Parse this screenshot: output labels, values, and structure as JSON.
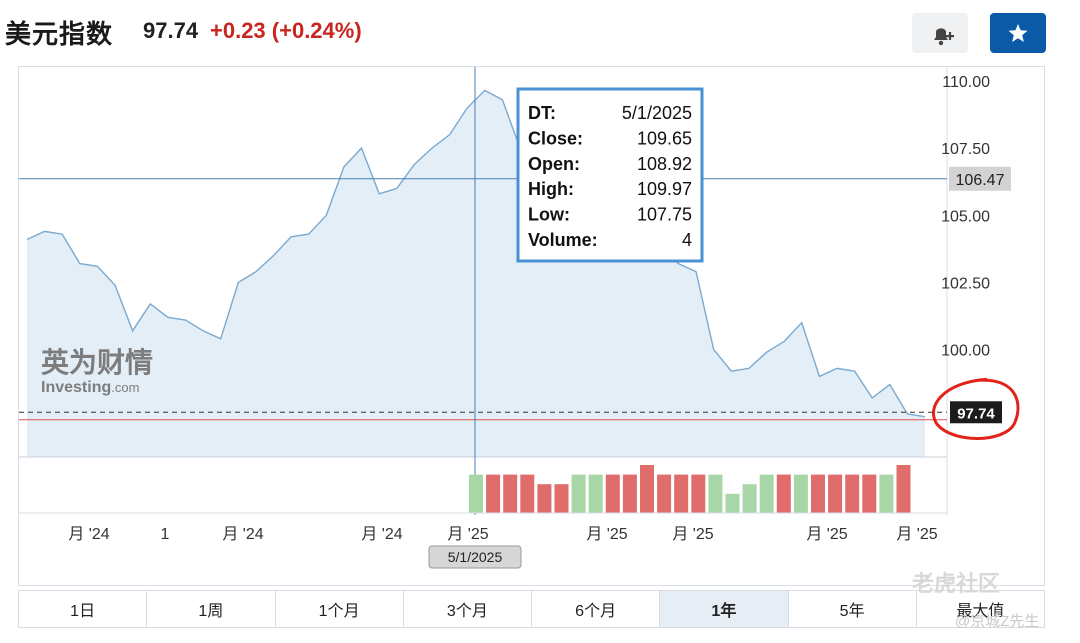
{
  "header": {
    "title": "美元指数",
    "price": "97.74",
    "change": "+0.23 (+0.24%)",
    "alert_icon": "bell-plus-icon",
    "star_icon": "star-icon"
  },
  "chart_data": {
    "type": "area",
    "x": [
      "2024-07",
      "2024-07",
      "2024-07",
      "2024-07",
      "2024-08",
      "2024-08",
      "2024-08",
      "2024-08",
      "2024-09",
      "2024-09",
      "2024-09",
      "2024-09",
      "2024-10",
      "2024-10",
      "2024-10",
      "2024-10",
      "2024-10",
      "2024-11",
      "2024-11",
      "2024-11",
      "2024-11",
      "2024-12",
      "2024-12",
      "2024-12",
      "2024-12",
      "2025-01",
      "2025-01",
      "2025-01",
      "2025-01",
      "2025-02",
      "2025-02",
      "2025-02",
      "2025-02",
      "2025-03",
      "2025-03",
      "2025-03",
      "2025-03",
      "2025-04",
      "2025-04",
      "2025-04",
      "2025-04",
      "2025-05",
      "2025-05",
      "2025-05",
      "2025-05",
      "2025-06",
      "2025-06",
      "2025-06",
      "2025-06",
      "2025-07",
      "2025-07",
      "2025-07"
    ],
    "values": [
      104.1,
      104.4,
      104.3,
      103.2,
      103.1,
      102.4,
      100.7,
      101.7,
      101.2,
      101.1,
      100.7,
      100.4,
      102.5,
      102.9,
      103.5,
      104.2,
      104.3,
      105.0,
      106.8,
      107.5,
      105.8,
      106.0,
      106.9,
      107.5,
      108.0,
      109.0,
      109.65,
      109.3,
      107.5,
      107.8,
      107.4,
      107.0,
      106.9,
      107.5,
      104.2,
      104.3,
      103.8,
      103.2,
      102.9,
      100.0,
      99.2,
      99.3,
      99.9,
      100.3,
      101.0,
      99.0,
      99.3,
      99.2,
      98.2,
      98.7,
      97.6,
      97.5
    ],
    "ylim": [
      96.0,
      110.0
    ],
    "y_ticks": [
      "110.00",
      "107.50",
      "105.00",
      "102.50",
      "100.00"
    ],
    "x_tick_labels": [
      "月 '24",
      "1",
      "月 '24",
      "月 '24",
      "月 '25",
      "月 '25",
      "月 '25",
      "月 '25",
      "月 '25"
    ],
    "grid": false,
    "volume": [
      {
        "v": 4,
        "dir": "up"
      },
      {
        "v": 4,
        "dir": "down"
      },
      {
        "v": 4,
        "dir": "down"
      },
      {
        "v": 4,
        "dir": "down"
      },
      {
        "v": 3,
        "dir": "down"
      },
      {
        "v": 3,
        "dir": "down"
      },
      {
        "v": 4,
        "dir": "up"
      },
      {
        "v": 4,
        "dir": "up"
      },
      {
        "v": 4,
        "dir": "down"
      },
      {
        "v": 4,
        "dir": "down"
      },
      {
        "v": 5,
        "dir": "down"
      },
      {
        "v": 4,
        "dir": "down"
      },
      {
        "v": 4,
        "dir": "down"
      },
      {
        "v": 4,
        "dir": "down"
      },
      {
        "v": 4,
        "dir": "up"
      },
      {
        "v": 2,
        "dir": "up"
      },
      {
        "v": 3,
        "dir": "up"
      },
      {
        "v": 4,
        "dir": "up"
      },
      {
        "v": 4,
        "dir": "down"
      },
      {
        "v": 4,
        "dir": "up"
      },
      {
        "v": 4,
        "dir": "down"
      },
      {
        "v": 4,
        "dir": "down"
      },
      {
        "v": 4,
        "dir": "down"
      },
      {
        "v": 4,
        "dir": "down"
      },
      {
        "v": 4,
        "dir": "up"
      },
      {
        "v": 5,
        "dir": "down"
      }
    ],
    "crosshair": {
      "date_label": "5/1/2025",
      "price_label": "106.47",
      "price": 106.47
    },
    "last_price_label": "97.74",
    "last_price": 97.74,
    "prev_close": 97.5,
    "tooltip": {
      "rows": [
        {
          "k": "DT:",
          "v": "5/1/2025"
        },
        {
          "k": "Close:",
          "v": "109.65"
        },
        {
          "k": "Open:",
          "v": "108.92"
        },
        {
          "k": "High:",
          "v": "109.97"
        },
        {
          "k": "Low:",
          "v": "107.75"
        },
        {
          "k": "Volume:",
          "v": "4"
        }
      ]
    },
    "watermark": {
      "cn": "英为财情",
      "en": "Investing",
      "en_suffix": ".com"
    },
    "colors": {
      "line": "#7ba9cf",
      "fill": "#e3eef7",
      "up": "#a9d6a7",
      "down": "#e06c6c",
      "crosshair": "#4a7fb6",
      "red_line": "#d9534f",
      "annotation": "#e2231a",
      "tooltip_border": "#4a90d6"
    }
  },
  "range_tabs": {
    "items": [
      "1日",
      "1周",
      "1个月",
      "3个月",
      "6个月",
      "1年",
      "5年",
      "最大值"
    ],
    "active": "1年"
  },
  "site_watermark": {
    "name": "老虎社区",
    "author": "@京城Z先生"
  }
}
